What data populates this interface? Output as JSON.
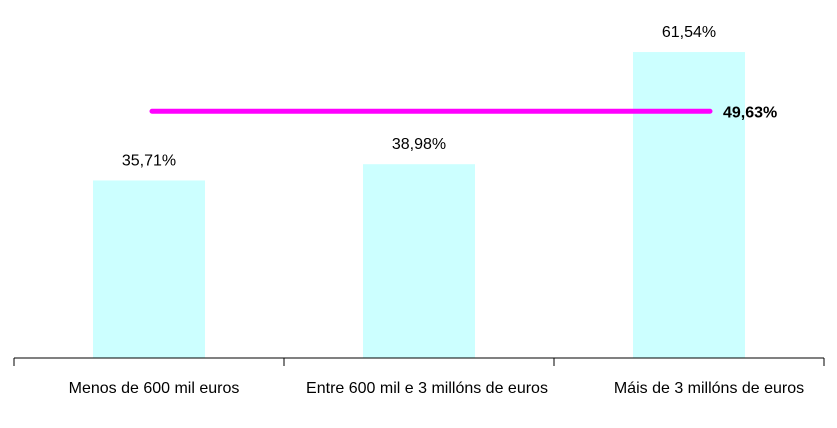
{
  "chart_data": {
    "type": "bar",
    "categories": [
      "Menos de 600 mil euros",
      "Entre 600 mil e 3 millóns de euros",
      "Máis de 3 millóns de euros"
    ],
    "values": [
      35.71,
      38.98,
      61.54
    ],
    "value_labels": [
      "35,71%",
      "38,98%",
      "61,54%"
    ],
    "bar_color": "#ccffff",
    "reference_line": {
      "value": 49.63,
      "label": "49,63%",
      "color": "#ff00ff"
    },
    "ylim": [
      0,
      70
    ],
    "grid": false,
    "legend": "none",
    "title": "",
    "xlabel": "",
    "ylabel": ""
  }
}
